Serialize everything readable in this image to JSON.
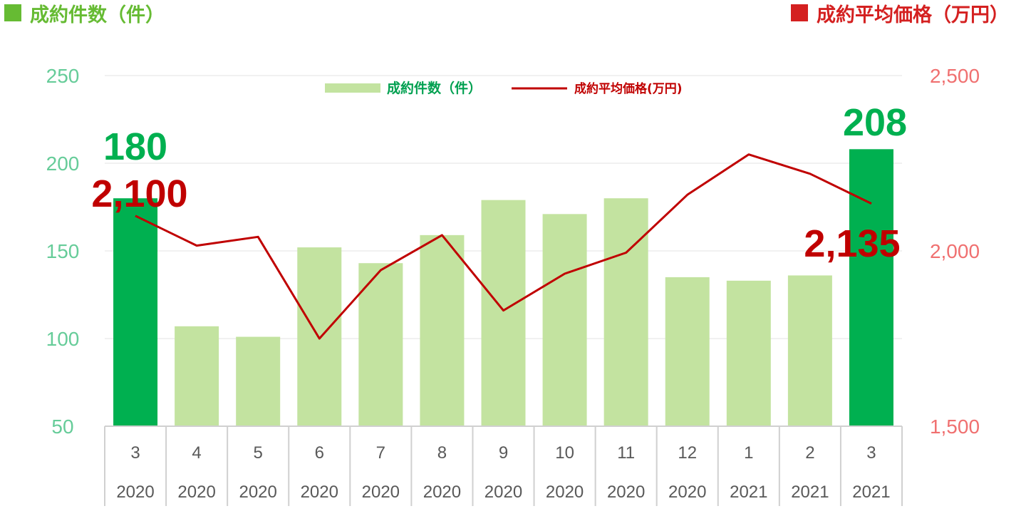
{
  "left_axis_title": "成約件数（件）",
  "right_axis_title": "成約平均価格（万円）",
  "colors": {
    "bar_normal": "#c3e3a0",
    "bar_highlight": "#00b050",
    "line": "#c00000",
    "left_tick": "#66cc99",
    "right_tick": "#f07070",
    "left_title": "#66bb33",
    "right_title": "#d42020"
  },
  "chart_data": {
    "type": "bar",
    "categories": [
      "3",
      "4",
      "5",
      "6",
      "7",
      "8",
      "9",
      "10",
      "11",
      "12",
      "1",
      "2",
      "3"
    ],
    "category_years": [
      "2020",
      "2020",
      "2020",
      "2020",
      "2020",
      "2020",
      "2020",
      "2020",
      "2020",
      "2020",
      "2021",
      "2021",
      "2021"
    ],
    "series": [
      {
        "name": "成約件数（件）",
        "type": "bar",
        "axis": "left",
        "values": [
          180,
          107,
          101,
          152,
          143,
          159,
          179,
          171,
          180,
          135,
          133,
          136,
          208
        ]
      },
      {
        "name": "成約平均価格(万円)",
        "type": "line",
        "axis": "right",
        "values": [
          2100,
          2015,
          2040,
          1750,
          1945,
          2045,
          1830,
          1935,
          1995,
          2160,
          2275,
          2220,
          2135
        ]
      }
    ],
    "highlight_indices": [
      0,
      12
    ],
    "left_axis": {
      "min": 50,
      "max": 250,
      "ticks": [
        "50",
        "100",
        "150",
        "200",
        "250"
      ]
    },
    "right_axis": {
      "min": 1500,
      "max": 2500,
      "ticks": [
        "1,500",
        "2,000",
        "2,500"
      ]
    },
    "callouts": {
      "first_count": "180",
      "first_price": "2,100",
      "last_count": "208",
      "last_price": "2,135"
    },
    "legend_position": "top-center",
    "grid": true
  }
}
